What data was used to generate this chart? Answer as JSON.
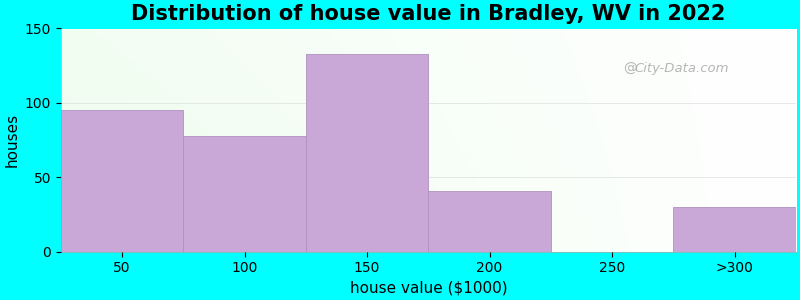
{
  "title": "Distribution of house value in Bradley, WV in 2022",
  "xlabel": "house value ($1000)",
  "ylabel": "houses",
  "categories": [
    "50",
    "100",
    "150",
    "200",
    "250",
    ">300"
  ],
  "values": [
    95,
    78,
    133,
    41,
    0,
    30
  ],
  "bar_color": "#C9A8D8",
  "bar_edge_color": "#B090C0",
  "ylim": [
    0,
    150
  ],
  "yticks": [
    0,
    50,
    100,
    150
  ],
  "background_color": "#00FFFF",
  "watermark_text": "City-Data.com",
  "title_fontsize": 15,
  "axis_label_fontsize": 11,
  "tick_fontsize": 10
}
